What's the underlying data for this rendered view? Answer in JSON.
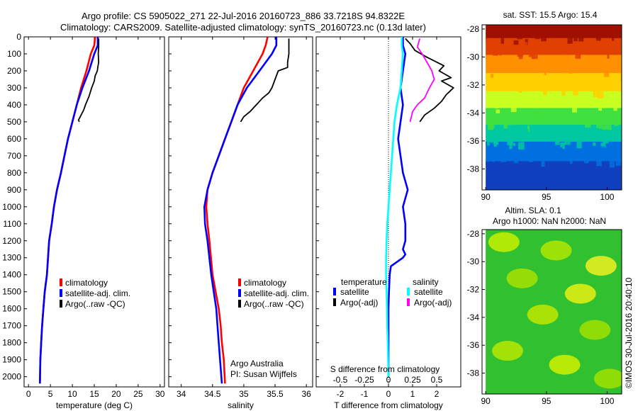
{
  "header": {
    "line1": "Argo profile: CS 5905022_271 22-Jul-2016 20160723_886 33.7218S 94.8322E",
    "line2": "Climatology: CARS2009. Satellite-adjusted climatology: synTS_20160723.nc (0.13d later)"
  },
  "credit": {
    "line1": "Argo Australia",
    "line2": "PI: Susan Wijffels"
  },
  "watermark": "©IMOS 30-Jul-2016 20:40:10",
  "colors": {
    "climatology": "#ff0000",
    "satellite": "#0000ff",
    "argo": "#000000",
    "satellite_s": "#00ffff",
    "argo_s": "#ff00ff",
    "zero_line": "#000000"
  },
  "chart_data": [
    {
      "type": "line",
      "panel": "temperature",
      "xlabel": "temperature (deg C)",
      "xlim": [
        -1,
        31
      ],
      "ylim": [
        2060,
        0
      ],
      "xticks": [
        0,
        5,
        10,
        15,
        20,
        25,
        30
      ],
      "yticks": [
        0,
        100,
        200,
        300,
        400,
        500,
        600,
        700,
        800,
        900,
        1000,
        1100,
        1200,
        1300,
        1400,
        1500,
        1600,
        1700,
        1800,
        1900,
        2000
      ],
      "legend": {
        "position": "lower-middle",
        "entries": [
          "climatology",
          "satellite-adj. clim.",
          "Argo(..raw -QC)"
        ]
      },
      "series": [
        {
          "name": "climatology",
          "color": "#ff0000",
          "x": [
            15.2,
            15.0,
            14.2,
            13.2,
            12.0,
            11.0,
            10.0,
            9.0,
            8.2,
            7.4,
            6.5,
            5.8,
            5.3,
            4.7,
            4.2,
            3.7,
            3.4,
            3.1,
            2.9,
            2.7,
            2.6
          ],
          "y": [
            0,
            50,
            100,
            200,
            300,
            400,
            500,
            600,
            700,
            800,
            900,
            1000,
            1100,
            1200,
            1400,
            1500,
            1600,
            1700,
            1800,
            1900,
            2040
          ]
        },
        {
          "name": "satellite-adj. clim.",
          "color": "#0000ff",
          "x": [
            15.8,
            15.8,
            15.0,
            13.8,
            12.3,
            11.0,
            10.0,
            9.0,
            8.2,
            7.4,
            6.5,
            5.8,
            5.3,
            4.7,
            4.2,
            3.7,
            3.4,
            3.1,
            2.9,
            2.7,
            2.6
          ],
          "y": [
            0,
            50,
            100,
            200,
            300,
            400,
            500,
            600,
            700,
            800,
            900,
            1000,
            1100,
            1200,
            1400,
            1500,
            1600,
            1700,
            1800,
            1900,
            2040
          ]
        },
        {
          "name": "Argo(..raw -QC)",
          "color": "#000000",
          "x": [
            16.0,
            16.0,
            15.9,
            16.0,
            15.8,
            15.7,
            15.2,
            15.0,
            14.4,
            13.8,
            13.0,
            12.6,
            12.0,
            11.4,
            11.6
          ],
          "y": [
            10,
            60,
            100,
            150,
            180,
            200,
            230,
            260,
            300,
            350,
            400,
            430,
            460,
            490,
            500
          ]
        }
      ]
    },
    {
      "type": "line",
      "panel": "salinity",
      "xlabel": "salinity",
      "xlim": [
        33.8,
        36.1
      ],
      "ylim": [
        2060,
        0
      ],
      "xticks": [
        34,
        34.5,
        35,
        35.5,
        36
      ],
      "legend": {
        "position": "lower-middle",
        "entries": [
          "climatology",
          "satellite-adj. clim.",
          "Argo(..raw -QC)"
        ]
      },
      "series": [
        {
          "name": "climatology",
          "color": "#ff0000",
          "x": [
            35.38,
            35.35,
            35.3,
            35.15,
            35.0,
            34.9,
            34.8,
            34.7,
            34.6,
            34.5,
            34.42,
            34.4,
            34.42,
            34.45,
            34.5,
            34.55,
            34.6,
            34.63,
            34.65,
            34.68,
            34.7
          ],
          "y": [
            0,
            50,
            100,
            200,
            300,
            400,
            500,
            600,
            700,
            800,
            900,
            1000,
            1100,
            1200,
            1400,
            1500,
            1600,
            1700,
            1800,
            1900,
            2040
          ]
        },
        {
          "name": "satellite-adj. clim.",
          "color": "#0000ff",
          "x": [
            35.52,
            35.52,
            35.45,
            35.25,
            35.05,
            34.9,
            34.8,
            34.7,
            34.6,
            34.5,
            34.42,
            34.37,
            34.38,
            34.42,
            34.48,
            34.52,
            34.56,
            34.58,
            34.6,
            34.62,
            34.65
          ],
          "y": [
            0,
            50,
            100,
            200,
            300,
            400,
            500,
            600,
            700,
            800,
            900,
            1000,
            1100,
            1200,
            1400,
            1500,
            1600,
            1700,
            1800,
            1900,
            2040
          ]
        },
        {
          "name": "Argo(..raw -QC)",
          "color": "#000000",
          "x": [
            35.72,
            35.72,
            35.7,
            35.7,
            35.55,
            35.5,
            35.45,
            35.4,
            35.3,
            35.2,
            35.1,
            35.0,
            34.95
          ],
          "y": [
            10,
            100,
            150,
            180,
            200,
            250,
            300,
            330,
            360,
            400,
            440,
            470,
            500
          ]
        }
      ]
    },
    {
      "type": "line",
      "panel": "difference",
      "xlabel": "T difference from climatology",
      "xlabel_top": "S difference from climatology",
      "xlim": [
        -3,
        3
      ],
      "ylim": [
        2060,
        0
      ],
      "xticks": [
        -2,
        -1,
        0,
        1,
        2
      ],
      "xticks_s_labels": [
        "-0.5",
        "-0.25",
        "0",
        "0.25",
        "0.5"
      ],
      "legend": {
        "position": "lower-middle",
        "group_titles": [
          "temperature",
          "salinity"
        ],
        "entries": [
          "satellite",
          "Argo(-adj)",
          "satellite",
          "Argo(-adj)"
        ]
      },
      "series": [
        {
          "name": "satellite",
          "group": "temperature",
          "color": "#0000ff",
          "x": [
            0.6,
            0.6,
            0.7,
            0.6,
            0.5,
            0.6,
            0.5,
            0.4,
            0.5,
            0.6,
            0.8,
            0.6,
            0.7,
            0.7,
            0.6,
            0.7,
            0.6,
            0.1,
            0.05,
            0.02,
            0.0,
            0.0,
            0.0
          ],
          "y": [
            0,
            50,
            100,
            200,
            300,
            400,
            500,
            600,
            700,
            800,
            900,
            1000,
            1100,
            1200,
            1250,
            1280,
            1300,
            1350,
            1400,
            1500,
            1600,
            1800,
            2000
          ]
        },
        {
          "name": "Argo(-adj)",
          "group": "temperature",
          "color": "#000000",
          "x": [
            0.7,
            0.9,
            1.1,
            1.6,
            2.3,
            2.1,
            2.6,
            2.2,
            2.7,
            2.4,
            2.2,
            1.9,
            1.5,
            1.3
          ],
          "y": [
            10,
            40,
            80,
            120,
            170,
            200,
            240,
            260,
            300,
            340,
            380,
            420,
            460,
            500
          ]
        },
        {
          "name": "satellite",
          "group": "salinity",
          "color": "#00ffff",
          "x": [
            0.55,
            0.55,
            0.6,
            0.55,
            0.5,
            0.35,
            0.25,
            0.2,
            0.15,
            0.1,
            0.05,
            0.0,
            -0.05,
            -0.08,
            -0.1,
            -0.1,
            -0.08,
            -0.06,
            -0.05,
            -0.03,
            0.0
          ],
          "y": [
            0,
            50,
            100,
            200,
            300,
            400,
            500,
            600,
            700,
            800,
            900,
            1000,
            1100,
            1200,
            1300,
            1400,
            1500,
            1600,
            1700,
            1800,
            2000
          ]
        },
        {
          "name": "Argo(-adj)",
          "group": "salinity",
          "color": "#ff00ff",
          "x": [
            1.3,
            1.2,
            1.4,
            1.6,
            1.8,
            1.9,
            1.7,
            1.5,
            1.2,
            1.0,
            0.9
          ],
          "y": [
            10,
            60,
            100,
            150,
            200,
            250,
            300,
            360,
            400,
            440,
            500
          ]
        }
      ]
    },
    {
      "type": "heatmap",
      "panel": "sst-map",
      "title": "sat. SST: 15.5 Argo: 15.4",
      "xlim": [
        89.7,
        101.2
      ],
      "ylim": [
        -39.5,
        -27.7
      ],
      "xticks": [
        90,
        95,
        100
      ],
      "yticks": [
        -28,
        -30,
        -32,
        -34,
        -36,
        -38
      ],
      "bands": [
        {
          "lat": [
            -27.7,
            -28.8
          ],
          "color": "#a01000"
        },
        {
          "lat": [
            -28.8,
            -30.0
          ],
          "color": "#e04000"
        },
        {
          "lat": [
            -30.0,
            -31.3
          ],
          "color": "#ff9000"
        },
        {
          "lat": [
            -31.3,
            -32.6
          ],
          "color": "#ffd000"
        },
        {
          "lat": [
            -32.6,
            -33.8
          ],
          "color": "#c8ff20"
        },
        {
          "lat": [
            -33.8,
            -35.0
          ],
          "color": "#40e040"
        },
        {
          "lat": [
            -35.0,
            -36.2
          ],
          "color": "#00c8a0"
        },
        {
          "lat": [
            -36.2,
            -37.6
          ],
          "color": "#0070e0"
        },
        {
          "lat": [
            -37.6,
            -39.5
          ],
          "color": "#1040c0"
        }
      ]
    },
    {
      "type": "heatmap",
      "panel": "sla-map",
      "title": "Altim. SLA: 0.1",
      "subtitle": "Argo h1000: NaN h2000: NaN",
      "xlim": [
        89.7,
        101.2
      ],
      "ylim": [
        -39.5,
        -27.7
      ],
      "xticks": [
        90,
        95,
        100
      ],
      "yticks": [
        -28,
        -30,
        -32,
        -34,
        -36,
        -38
      ],
      "base_color": "#30c030",
      "spots": [
        {
          "lon": 91.5,
          "lat": -28.6,
          "color": "#c8f000"
        },
        {
          "lon": 95.8,
          "lat": -29.2,
          "color": "#b0e800"
        },
        {
          "lon": 99.5,
          "lat": -30.3,
          "color": "#f0f020"
        },
        {
          "lon": 93.0,
          "lat": -31.2,
          "color": "#a8e000"
        },
        {
          "lon": 97.8,
          "lat": -32.3,
          "color": "#e8f010"
        },
        {
          "lon": 94.7,
          "lat": -33.8,
          "color": "#c0e800"
        },
        {
          "lon": 99.0,
          "lat": -34.9,
          "color": "#a0e000"
        },
        {
          "lon": 91.8,
          "lat": -36.4,
          "color": "#b8e800"
        },
        {
          "lon": 96.5,
          "lat": -37.4,
          "color": "#d0f000"
        },
        {
          "lon": 100.2,
          "lat": -38.4,
          "color": "#a0e000"
        }
      ]
    }
  ]
}
